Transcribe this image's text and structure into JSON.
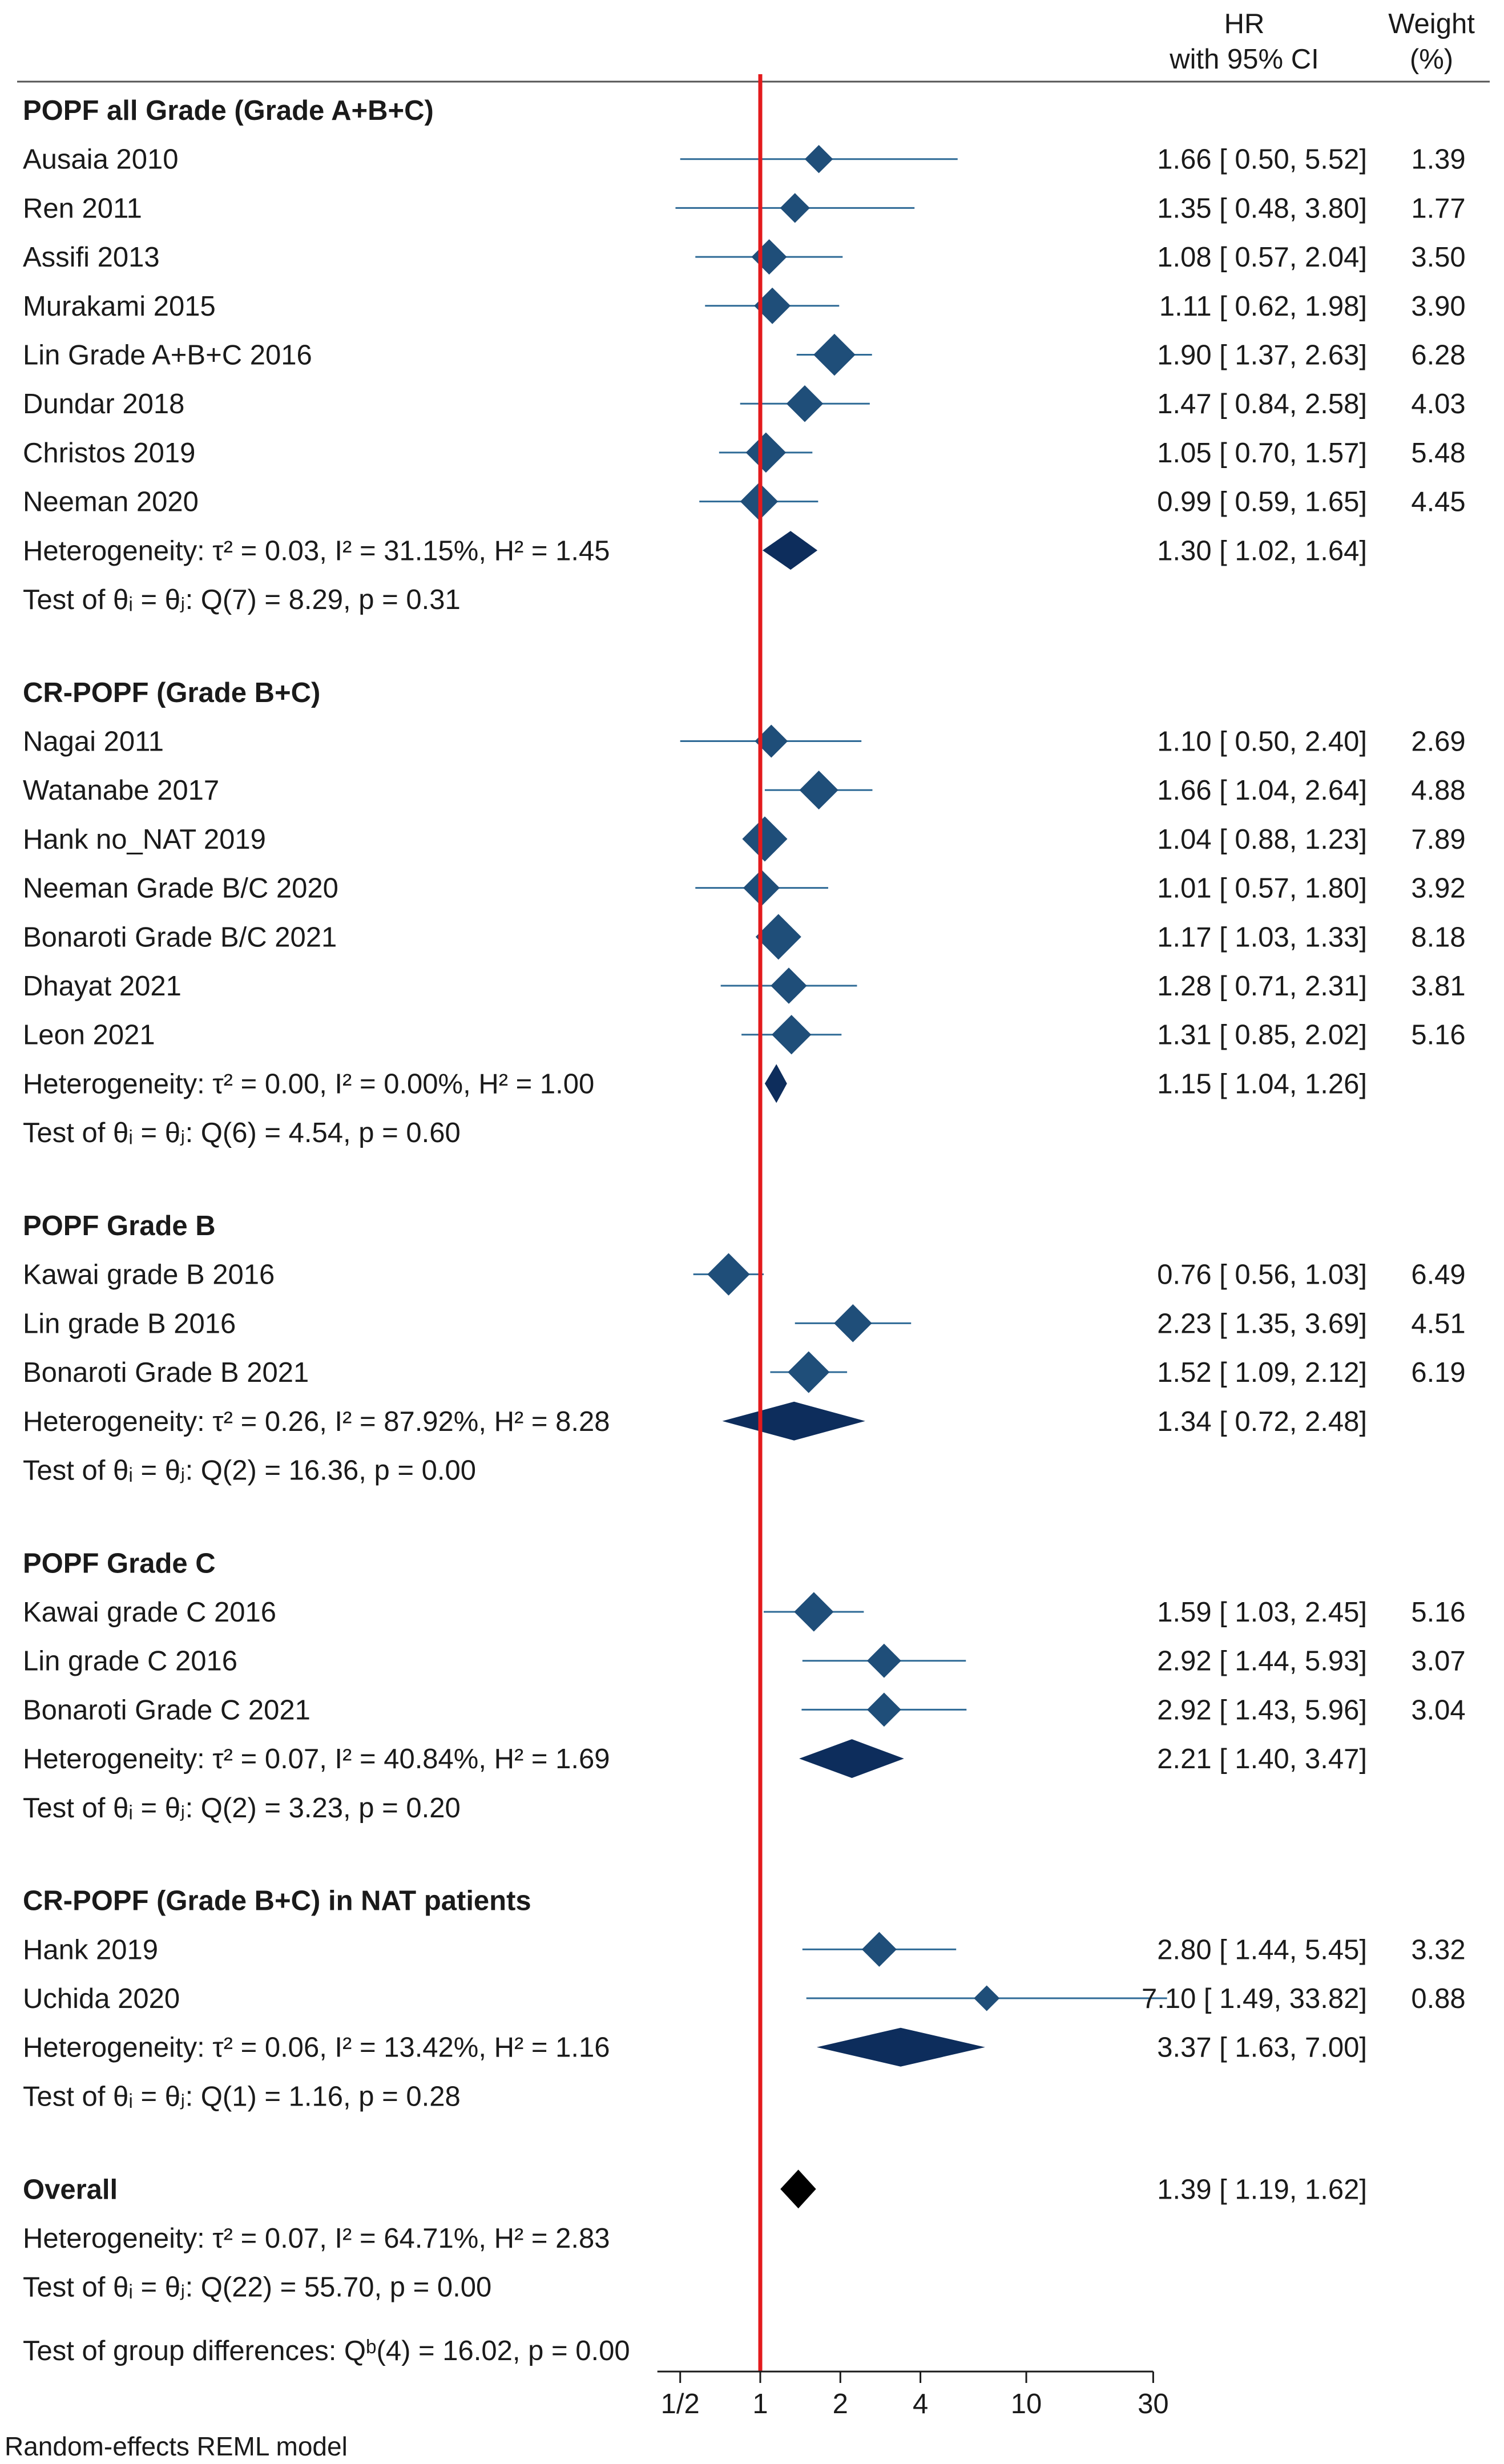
{
  "chart_data": {
    "type": "forest",
    "title": "",
    "xlabel": "",
    "ylabel": "",
    "xscale": "log",
    "xlim": [
      0.4,
      32
    ],
    "reference_line": 1,
    "xticks": [
      {
        "value": 0.5,
        "label": "1/2"
      },
      {
        "value": 1,
        "label": "1"
      },
      {
        "value": 2,
        "label": "2"
      },
      {
        "value": 4,
        "label": "4"
      },
      {
        "value": 10,
        "label": "10"
      },
      {
        "value": 30,
        "label": "30"
      }
    ],
    "columns": {
      "hr_header_line1": "HR",
      "hr_header_line2": "with 95% CI",
      "weight_header_line1": "Weight",
      "weight_header_line2": "(%)"
    },
    "groups": [
      {
        "name": "POPF all Grade (Grade A+B+C)",
        "studies": [
          {
            "label": "Ausaia 2010",
            "hr": 1.66,
            "lo": 0.5,
            "hi": 5.52,
            "weight": 1.39,
            "hr_text": "1.66 [ 0.50,   5.52]",
            "weight_text": "1.39"
          },
          {
            "label": "Ren 2011",
            "hr": 1.35,
            "lo": 0.48,
            "hi": 3.8,
            "weight": 1.77,
            "hr_text": "1.35 [ 0.48,   3.80]",
            "weight_text": "1.77"
          },
          {
            "label": "Assifi 2013",
            "hr": 1.08,
            "lo": 0.57,
            "hi": 2.04,
            "weight": 3.5,
            "hr_text": "1.08 [ 0.57,   2.04]",
            "weight_text": "3.50"
          },
          {
            "label": "Murakami 2015",
            "hr": 1.11,
            "lo": 0.62,
            "hi": 1.98,
            "weight": 3.9,
            "hr_text": "1.11 [ 0.62,   1.98]",
            "weight_text": "3.90"
          },
          {
            "label": "Lin Grade A+B+C 2016",
            "hr": 1.9,
            "lo": 1.37,
            "hi": 2.63,
            "weight": 6.28,
            "hr_text": "1.90 [ 1.37,   2.63]",
            "weight_text": "6.28"
          },
          {
            "label": "Dundar 2018",
            "hr": 1.47,
            "lo": 0.84,
            "hi": 2.58,
            "weight": 4.03,
            "hr_text": "1.47 [ 0.84,   2.58]",
            "weight_text": "4.03"
          },
          {
            "label": "Christos 2019",
            "hr": 1.05,
            "lo": 0.7,
            "hi": 1.57,
            "weight": 5.48,
            "hr_text": "1.05 [ 0.70,   1.57]",
            "weight_text": "5.48"
          },
          {
            "label": "Neeman 2020",
            "hr": 0.99,
            "lo": 0.59,
            "hi": 1.65,
            "weight": 4.45,
            "hr_text": "0.99 [ 0.59,   1.65]",
            "weight_text": "4.45"
          }
        ],
        "pooled": {
          "hr": 1.3,
          "lo": 1.02,
          "hi": 1.64,
          "hr_text": "1.30 [ 1.02,   1.64]",
          "het_text": "Heterogeneity: τ² = 0.03, I² = 31.15%, H² = 1.45"
        },
        "test_text": "Test of θᵢ = θⱼ: Q(7) = 8.29, p = 0.31"
      },
      {
        "name": "CR-POPF (Grade B+C)",
        "studies": [
          {
            "label": "Nagai 2011",
            "hr": 1.1,
            "lo": 0.5,
            "hi": 2.4,
            "weight": 2.69,
            "hr_text": "1.10 [ 0.50,   2.40]",
            "weight_text": "2.69"
          },
          {
            "label": "Watanabe 2017",
            "hr": 1.66,
            "lo": 1.04,
            "hi": 2.64,
            "weight": 4.88,
            "hr_text": "1.66 [ 1.04,   2.64]",
            "weight_text": "4.88"
          },
          {
            "label": "Hank no_NAT 2019",
            "hr": 1.04,
            "lo": 0.88,
            "hi": 1.23,
            "weight": 7.89,
            "hr_text": "1.04 [ 0.88,   1.23]",
            "weight_text": "7.89"
          },
          {
            "label": "Neeman Grade B/C 2020",
            "hr": 1.01,
            "lo": 0.57,
            "hi": 1.8,
            "weight": 3.92,
            "hr_text": "1.01 [ 0.57,   1.80]",
            "weight_text": "3.92"
          },
          {
            "label": "Bonaroti Grade B/C 2021",
            "hr": 1.17,
            "lo": 1.03,
            "hi": 1.33,
            "weight": 8.18,
            "hr_text": "1.17 [ 1.03,   1.33]",
            "weight_text": "8.18"
          },
          {
            "label": "Dhayat 2021",
            "hr": 1.28,
            "lo": 0.71,
            "hi": 2.31,
            "weight": 3.81,
            "hr_text": "1.28 [ 0.71,   2.31]",
            "weight_text": "3.81"
          },
          {
            "label": "Leon 2021",
            "hr": 1.31,
            "lo": 0.85,
            "hi": 2.02,
            "weight": 5.16,
            "hr_text": "1.31 [ 0.85,   2.02]",
            "weight_text": "5.16"
          }
        ],
        "pooled": {
          "hr": 1.15,
          "lo": 1.04,
          "hi": 1.26,
          "hr_text": "1.15 [ 1.04,   1.26]",
          "het_text": "Heterogeneity: τ² = 0.00, I² = 0.00%, H² = 1.00"
        },
        "test_text": "Test of θᵢ = θⱼ: Q(6) = 4.54, p = 0.60"
      },
      {
        "name": "POPF Grade B",
        "studies": [
          {
            "label": "Kawai grade B 2016",
            "hr": 0.76,
            "lo": 0.56,
            "hi": 1.03,
            "weight": 6.49,
            "hr_text": "0.76 [ 0.56,   1.03]",
            "weight_text": "6.49"
          },
          {
            "label": "Lin grade B 2016",
            "hr": 2.23,
            "lo": 1.35,
            "hi": 3.69,
            "weight": 4.51,
            "hr_text": "2.23 [ 1.35,   3.69]",
            "weight_text": "4.51"
          },
          {
            "label": "Bonaroti Grade B 2021",
            "hr": 1.52,
            "lo": 1.09,
            "hi": 2.12,
            "weight": 6.19,
            "hr_text": "1.52 [ 1.09,   2.12]",
            "weight_text": "6.19"
          }
        ],
        "pooled": {
          "hr": 1.34,
          "lo": 0.72,
          "hi": 2.48,
          "hr_text": "1.34 [ 0.72,   2.48]",
          "het_text": "Heterogeneity: τ² = 0.26, I² = 87.92%, H² = 8.28"
        },
        "test_text": "Test of θᵢ = θⱼ: Q(2) = 16.36, p = 0.00"
      },
      {
        "name": "POPF Grade C",
        "studies": [
          {
            "label": "Kawai grade C 2016",
            "hr": 1.59,
            "lo": 1.03,
            "hi": 2.45,
            "weight": 5.16,
            "hr_text": "1.59 [ 1.03,   2.45]",
            "weight_text": "5.16"
          },
          {
            "label": "Lin grade C 2016",
            "hr": 2.92,
            "lo": 1.44,
            "hi": 5.93,
            "weight": 3.07,
            "hr_text": "2.92 [ 1.44,   5.93]",
            "weight_text": "3.07"
          },
          {
            "label": "Bonaroti Grade C 2021",
            "hr": 2.92,
            "lo": 1.43,
            "hi": 5.96,
            "weight": 3.04,
            "hr_text": "2.92 [ 1.43,   5.96]",
            "weight_text": "3.04"
          }
        ],
        "pooled": {
          "hr": 2.21,
          "lo": 1.4,
          "hi": 3.47,
          "hr_text": "2.21 [ 1.40,   3.47]",
          "het_text": "Heterogeneity: τ² = 0.07, I² = 40.84%, H² = 1.69"
        },
        "test_text": "Test of θᵢ = θⱼ: Q(2) = 3.23, p = 0.20"
      },
      {
        "name": "CR-POPF (Grade B+C) in NAT patients",
        "studies": [
          {
            "label": "Hank 2019",
            "hr": 2.8,
            "lo": 1.44,
            "hi": 5.45,
            "weight": 3.32,
            "hr_text": "2.80 [ 1.44,   5.45]",
            "weight_text": "3.32"
          },
          {
            "label": "Uchida 2020",
            "hr": 7.1,
            "lo": 1.49,
            "hi": 33.82,
            "weight": 0.88,
            "hr_text": "7.10 [ 1.49, 33.82]",
            "weight_text": "0.88"
          }
        ],
        "pooled": {
          "hr": 3.37,
          "lo": 1.63,
          "hi": 7.0,
          "hr_text": "3.37 [ 1.63,   7.00]",
          "het_text": "Heterogeneity: τ² = 0.06, I² = 13.42%, H² = 1.16"
        },
        "test_text": "Test of θᵢ = θⱼ: Q(1) = 1.16, p = 0.28"
      }
    ],
    "overall": {
      "label": "Overall",
      "hr": 1.39,
      "lo": 1.19,
      "hi": 1.62,
      "hr_text": "1.39 [ 1.19,   1.62]",
      "het_text": "Heterogeneity: τ² = 0.07, I² = 64.71%, H² = 2.83",
      "test_text": "Test of θᵢ = θⱼ: Q(22) = 55.70, p = 0.00"
    },
    "group_diff_text": "Test of group differences: Qᵇ(4) = 16.02, p = 0.00",
    "model_note": "Random-effects REML model"
  },
  "colors": {
    "study_marker": "#1f4e79",
    "ci_line": "#2e6a96",
    "pooled_diamond": "#0d2d5c",
    "overall_diamond": "#000000",
    "reference_line": "#e31a1c",
    "text": "#1a1a1a",
    "rule": "#555555"
  }
}
